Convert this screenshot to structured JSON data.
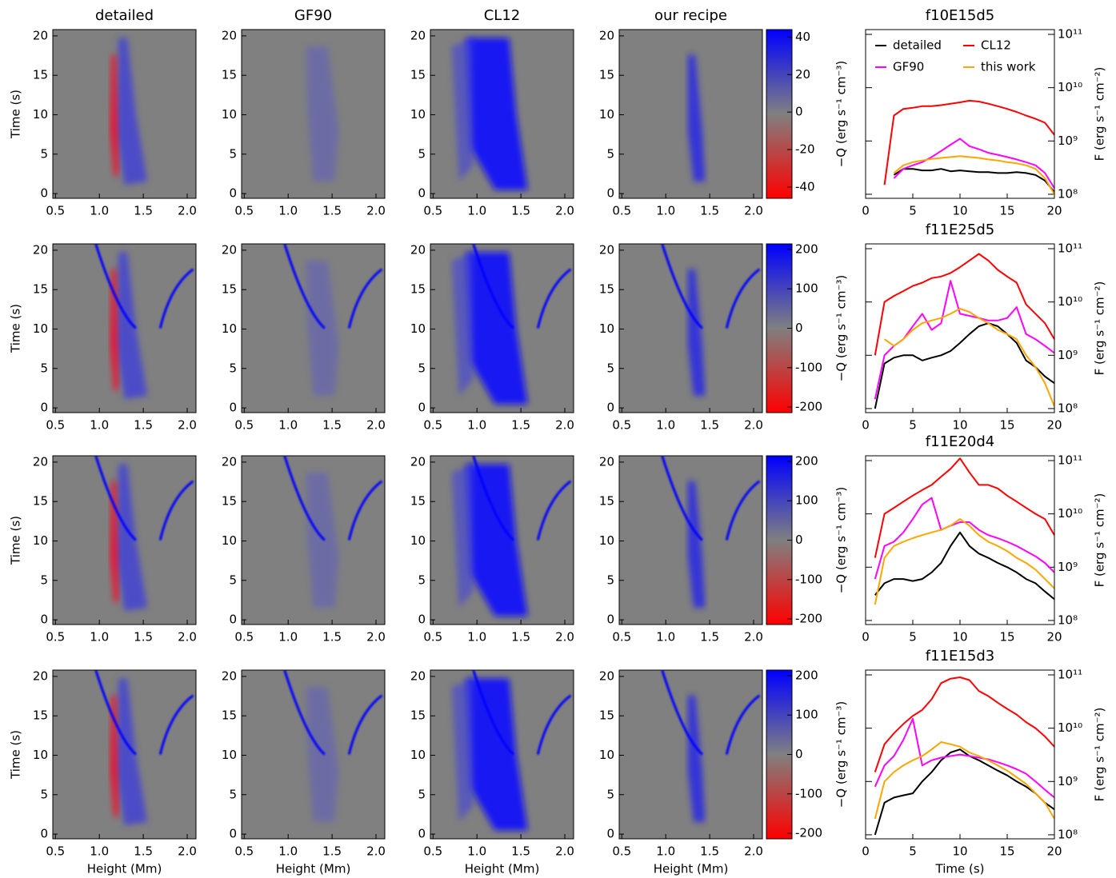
{
  "heatmap_panels": {
    "type": "heatmap",
    "column_titles": [
      "detailed",
      "GF90",
      "CL12",
      "our recipe"
    ],
    "xlabel": "Height (Mm)",
    "ylabel": "Time (s)",
    "xlim": [
      0.47,
      2.1
    ],
    "xticks": [
      {
        "value": 0.5,
        "label": "0.5"
      },
      {
        "value": 1,
        "label": "1.0"
      },
      {
        "value": 1.5,
        "label": "1.5"
      },
      {
        "value": 2,
        "label": "2.0"
      }
    ],
    "ylim": [
      -0.6,
      20.8
    ],
    "yticks": [
      0,
      5,
      10,
      15,
      20
    ]
  },
  "colorbars": [
    {
      "label": "−Q (erg s⁻¹ cm⁻³)",
      "lim": [
        -46,
        44
      ],
      "ticks": [
        -40,
        -20,
        0,
        20,
        40
      ]
    },
    {
      "label": "−Q (erg s⁻¹ cm⁻³)",
      "lim": [
        -214,
        214
      ],
      "ticks": [
        -200,
        -100,
        0,
        100,
        200
      ]
    },
    {
      "label": "−Q (erg s⁻¹ cm⁻³)",
      "lim": [
        -214,
        214
      ],
      "ticks": [
        -200,
        -100,
        0,
        100,
        200
      ]
    },
    {
      "label": "−Q (erg s⁻¹ cm⁻³)",
      "lim": [
        -214,
        214
      ],
      "ticks": [
        -200,
        -100,
        0,
        100,
        200
      ]
    }
  ],
  "chart_data": [
    {
      "type": "line",
      "title": "f10E15d5",
      "ylabel": "F (erg s⁻¹ cm⁻²)",
      "log_y": true,
      "legend": "top",
      "xlim": [
        0,
        20
      ],
      "xticks": [
        0,
        5,
        10,
        15,
        20
      ],
      "ylim": [
        84000000,
        123000000000
      ],
      "yticks": [
        {
          "value": 100000000,
          "label": "10⁸"
        },
        {
          "value": 1000000000,
          "label": "10⁹"
        },
        {
          "value": 10000000000,
          "label": "10¹⁰"
        },
        {
          "value": 100000000000,
          "label": "10¹¹"
        }
      ],
      "x": [
        0,
        1,
        2,
        3,
        4,
        5,
        6,
        7,
        8,
        9,
        10,
        11,
        12,
        13,
        14,
        15,
        16,
        17,
        18,
        19,
        20
      ],
      "series": [
        {
          "name": "detailed",
          "color": "#000000",
          "values": [
            null,
            null,
            null,
            230000000,
            300000000,
            300000000,
            280000000,
            280000000,
            300000000,
            270000000,
            280000000,
            270000000,
            260000000,
            260000000,
            250000000,
            250000000,
            260000000,
            250000000,
            230000000,
            180000000,
            110000000
          ]
        },
        {
          "name": "CL12",
          "color": "#ff0000",
          "values": [
            null,
            null,
            150000000,
            3000000000,
            4000000000,
            4200000000,
            4500000000,
            4500000000,
            4700000000,
            5000000000,
            5300000000,
            5700000000,
            5500000000,
            5000000000,
            4500000000,
            4000000000,
            3500000000,
            3000000000,
            2600000000,
            2200000000,
            1300000000
          ]
        },
        {
          "name": "GF90",
          "color": "#ff00ff",
          "values": [
            null,
            null,
            null,
            200000000,
            300000000,
            350000000,
            400000000,
            500000000,
            650000000,
            850000000,
            1100000000,
            800000000,
            700000000,
            600000000,
            550000000,
            500000000,
            450000000,
            400000000,
            350000000,
            250000000,
            130000000
          ]
        },
        {
          "name": "this work",
          "color": "#ffa500",
          "values": [
            null,
            null,
            null,
            250000000,
            350000000,
            400000000,
            430000000,
            460000000,
            480000000,
            500000000,
            520000000,
            500000000,
            480000000,
            450000000,
            430000000,
            400000000,
            380000000,
            350000000,
            300000000,
            200000000,
            100000000
          ]
        }
      ]
    },
    {
      "type": "line",
      "title": "f11E25d5",
      "ylabel": "F (erg s⁻¹ cm⁻²)",
      "log_y": true,
      "xlim": [
        0,
        20
      ],
      "xticks": [
        0,
        5,
        10,
        15,
        20
      ],
      "ylim": [
        84000000,
        123000000000
      ],
      "yticks": [
        {
          "value": 100000000,
          "label": "10⁸"
        },
        {
          "value": 1000000000,
          "label": "10⁹"
        },
        {
          "value": 10000000000,
          "label": "10¹⁰"
        },
        {
          "value": 100000000000,
          "label": "10¹¹"
        }
      ],
      "x": [
        0,
        1,
        2,
        3,
        4,
        5,
        6,
        7,
        8,
        9,
        10,
        11,
        12,
        13,
        14,
        15,
        16,
        17,
        18,
        19,
        20
      ],
      "series": [
        {
          "color": "#000000",
          "values": [
            null,
            100000000,
            700000000,
            900000000,
            1000000000,
            1000000000,
            800000000,
            900000000,
            1000000000,
            1200000000,
            1700000000,
            2500000000,
            3500000000,
            4000000000,
            3500000000,
            2500000000,
            1700000000,
            800000000,
            600000000,
            400000000,
            300000000
          ]
        },
        {
          "color": "#ff0000",
          "values": [
            null,
            1000000000,
            10000000000,
            13000000000,
            16000000000,
            20000000000,
            23000000000,
            28000000000,
            30000000000,
            35000000000,
            45000000000,
            60000000000,
            80000000000,
            60000000000,
            40000000000,
            30000000000,
            23000000000,
            9000000000,
            6000000000,
            4000000000,
            2000000000
          ]
        },
        {
          "color": "#ff00ff",
          "values": [
            null,
            150000000,
            1000000000,
            1500000000,
            2000000000,
            3500000000,
            6000000000,
            3000000000,
            4000000000,
            25000000000,
            6000000000,
            5500000000,
            5000000000,
            4500000000,
            4500000000,
            5000000000,
            8000000000,
            2500000000,
            2000000000,
            1500000000,
            1100000000
          ]
        },
        {
          "color": "#ffa500",
          "values": [
            null,
            null,
            2000000000,
            1500000000,
            2000000000,
            3000000000,
            4000000000,
            4500000000,
            5000000000,
            6000000000,
            7500000000,
            6500000000,
            5000000000,
            4000000000,
            3000000000,
            2500000000,
            2000000000,
            1000000000,
            600000000,
            300000000,
            110000000
          ]
        }
      ]
    },
    {
      "type": "line",
      "title": "f11E20d4",
      "ylabel": "F (erg s⁻¹ cm⁻²)",
      "log_y": true,
      "xlim": [
        0,
        20
      ],
      "xticks": [
        0,
        5,
        10,
        15,
        20
      ],
      "ylim": [
        84000000,
        123000000000
      ],
      "yticks": [
        {
          "value": 100000000,
          "label": "10⁸"
        },
        {
          "value": 1000000000,
          "label": "10⁹"
        },
        {
          "value": 10000000000,
          "label": "10¹⁰"
        },
        {
          "value": 100000000000,
          "label": "10¹¹"
        }
      ],
      "x": [
        0,
        1,
        2,
        3,
        4,
        5,
        6,
        7,
        8,
        9,
        10,
        11,
        12,
        13,
        14,
        15,
        16,
        17,
        18,
        19,
        20
      ],
      "series": [
        {
          "color": "#000000",
          "values": [
            null,
            300000000,
            500000000,
            600000000,
            600000000,
            550000000,
            600000000,
            800000000,
            1200000000,
            2500000000,
            4500000000,
            2500000000,
            1800000000,
            1500000000,
            1200000000,
            1000000000,
            800000000,
            600000000,
            500000000,
            350000000,
            250000000
          ]
        },
        {
          "color": "#ff0000",
          "values": [
            null,
            1500000000,
            10000000000,
            13000000000,
            17000000000,
            22000000000,
            28000000000,
            35000000000,
            50000000000,
            70000000000,
            110000000000,
            60000000000,
            35000000000,
            35000000000,
            30000000000,
            22000000000,
            17000000000,
            13000000000,
            10000000000,
            8000000000,
            4000000000
          ]
        },
        {
          "color": "#ff00ff",
          "values": [
            null,
            600000000,
            2500000000,
            3000000000,
            4500000000,
            8000000000,
            15000000000,
            20000000000,
            5000000000,
            6000000000,
            7000000000,
            7000000000,
            5000000000,
            4000000000,
            3500000000,
            3000000000,
            2500000000,
            2000000000,
            1600000000,
            1200000000,
            800000000
          ]
        },
        {
          "color": "#ffa500",
          "values": [
            null,
            200000000,
            1500000000,
            2500000000,
            3000000000,
            3500000000,
            4000000000,
            4500000000,
            5000000000,
            6000000000,
            8000000000,
            6000000000,
            4000000000,
            3000000000,
            2500000000,
            2000000000,
            1500000000,
            1200000000,
            900000000,
            600000000,
            400000000
          ]
        }
      ]
    },
    {
      "type": "line",
      "title": "f11E15d3",
      "xlabel": "Time (s)",
      "ylabel": "F (erg s⁻¹ cm⁻²)",
      "log_y": true,
      "xlim": [
        0,
        20
      ],
      "xticks": [
        0,
        5,
        10,
        15,
        20
      ],
      "ylim": [
        84000000,
        123000000000
      ],
      "yticks": [
        {
          "value": 100000000,
          "label": "10⁸"
        },
        {
          "value": 1000000000,
          "label": "10⁹"
        },
        {
          "value": 10000000000,
          "label": "10¹⁰"
        },
        {
          "value": 100000000000,
          "label": "10¹¹"
        }
      ],
      "x": [
        0,
        1,
        2,
        3,
        4,
        5,
        6,
        7,
        8,
        9,
        10,
        11,
        12,
        13,
        14,
        15,
        16,
        17,
        18,
        19,
        20
      ],
      "series": [
        {
          "color": "#000000",
          "values": [
            null,
            100000000,
            400000000,
            500000000,
            550000000,
            600000000,
            1000000000,
            1500000000,
            2500000000,
            3500000000,
            4000000000,
            3000000000,
            2500000000,
            2000000000,
            1600000000,
            1300000000,
            1000000000,
            800000000,
            600000000,
            400000000,
            300000000
          ]
        },
        {
          "color": "#ff0000",
          "values": [
            null,
            1500000000,
            5000000000,
            8000000000,
            12000000000,
            17000000000,
            22000000000,
            35000000000,
            70000000000,
            85000000000,
            90000000000,
            80000000000,
            50000000000,
            40000000000,
            30000000000,
            23000000000,
            18000000000,
            13000000000,
            10000000000,
            7000000000,
            4500000000
          ]
        },
        {
          "color": "#ff00ff",
          "values": [
            null,
            800000000,
            2000000000,
            3000000000,
            6000000000,
            15000000000,
            2000000000,
            2500000000,
            2800000000,
            3000000000,
            3200000000,
            3000000000,
            2800000000,
            2600000000,
            2300000000,
            2000000000,
            1700000000,
            1400000000,
            1000000000,
            700000000,
            500000000
          ]
        },
        {
          "color": "#ffa500",
          "values": [
            null,
            200000000,
            1000000000,
            1500000000,
            2000000000,
            2500000000,
            3000000000,
            4000000000,
            5500000000,
            5000000000,
            4500000000,
            3500000000,
            3000000000,
            2500000000,
            2000000000,
            1600000000,
            1200000000,
            900000000,
            600000000,
            400000000,
            200000000
          ]
        }
      ]
    }
  ]
}
